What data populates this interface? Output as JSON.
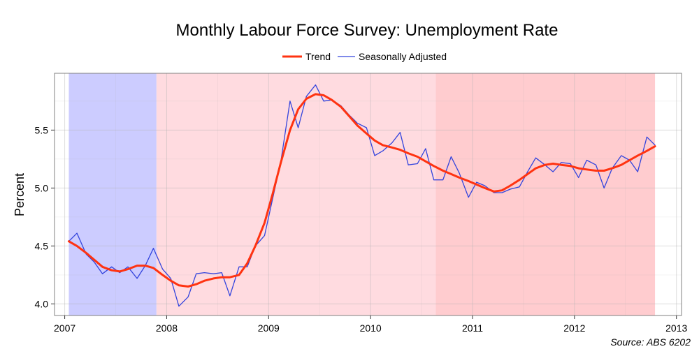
{
  "chart_data": {
    "type": "line",
    "title": "Monthly Labour Force Survey: Unemployment Rate",
    "ylabel": "Percent",
    "xlabel": "",
    "caption": "Source: ABS 6202",
    "xlim": [
      2006.9,
      2013.05
    ],
    "ylim": [
      3.9,
      5.99
    ],
    "x_ticks": [
      2007,
      2008,
      2009,
      2010,
      2011,
      2012,
      2013
    ],
    "y_ticks": [
      4.0,
      4.5,
      5.0,
      5.5
    ],
    "y_tick_labels": [
      "4.0",
      "4.5",
      "5.0",
      "5.5"
    ],
    "grid": true,
    "legend_position": "top",
    "shaded_periods": [
      {
        "start": 2007.04,
        "end": 2007.9,
        "color": "#ccccff"
      },
      {
        "start": 2007.9,
        "end": 2010.64,
        "color": "#ffdbe0"
      },
      {
        "start": 2010.64,
        "end": 2012.79,
        "color": "#ffcccf"
      }
    ],
    "series": [
      {
        "name": "Trend",
        "color": "#ff3311",
        "x": [
          2007.04,
          2007.12,
          2007.21,
          2007.29,
          2007.37,
          2007.46,
          2007.54,
          2007.62,
          2007.71,
          2007.79,
          2007.87,
          2007.96,
          2008.04,
          2008.12,
          2008.21,
          2008.29,
          2008.37,
          2008.46,
          2008.54,
          2008.62,
          2008.71,
          2008.79,
          2008.87,
          2008.96,
          2009.04,
          2009.12,
          2009.21,
          2009.29,
          2009.37,
          2009.46,
          2009.54,
          2009.62,
          2009.71,
          2009.79,
          2009.87,
          2009.96,
          2010.04,
          2010.12,
          2010.21,
          2010.29,
          2010.37,
          2010.46,
          2010.54,
          2010.62,
          2010.71,
          2010.79,
          2010.87,
          2010.96,
          2011.04,
          2011.12,
          2011.21,
          2011.29,
          2011.37,
          2011.46,
          2011.54,
          2011.62,
          2011.71,
          2011.79,
          2011.87,
          2011.96,
          2012.04,
          2012.12,
          2012.21,
          2012.29,
          2012.37,
          2012.46,
          2012.54,
          2012.62,
          2012.71,
          2012.79
        ],
        "values": [
          4.54,
          4.5,
          4.44,
          4.38,
          4.32,
          4.29,
          4.28,
          4.3,
          4.33,
          4.33,
          4.31,
          4.25,
          4.2,
          4.16,
          4.15,
          4.17,
          4.2,
          4.22,
          4.23,
          4.23,
          4.25,
          4.35,
          4.5,
          4.7,
          4.95,
          5.22,
          5.5,
          5.68,
          5.77,
          5.81,
          5.8,
          5.76,
          5.7,
          5.62,
          5.54,
          5.47,
          5.41,
          5.37,
          5.35,
          5.33,
          5.3,
          5.27,
          5.23,
          5.19,
          5.15,
          5.12,
          5.09,
          5.06,
          5.03,
          5.0,
          4.97,
          4.98,
          5.02,
          5.07,
          5.12,
          5.17,
          5.2,
          5.21,
          5.2,
          5.19,
          5.17,
          5.16,
          5.15,
          5.15,
          5.17,
          5.2,
          5.24,
          5.28,
          5.32,
          5.36
        ]
      },
      {
        "name": "Seasonally Adjusted",
        "color": "#3344dd",
        "x": [
          2007.04,
          2007.12,
          2007.21,
          2007.29,
          2007.37,
          2007.46,
          2007.54,
          2007.62,
          2007.71,
          2007.79,
          2007.87,
          2007.96,
          2008.04,
          2008.12,
          2008.21,
          2008.29,
          2008.37,
          2008.46,
          2008.54,
          2008.62,
          2008.71,
          2008.79,
          2008.87,
          2008.96,
          2009.04,
          2009.12,
          2009.21,
          2009.29,
          2009.37,
          2009.46,
          2009.54,
          2009.62,
          2009.71,
          2009.79,
          2009.87,
          2009.96,
          2010.04,
          2010.12,
          2010.21,
          2010.29,
          2010.37,
          2010.46,
          2010.54,
          2010.62,
          2010.71,
          2010.79,
          2010.87,
          2010.96,
          2011.04,
          2011.12,
          2011.21,
          2011.29,
          2011.37,
          2011.46,
          2011.54,
          2011.62,
          2011.71,
          2011.79,
          2011.87,
          2011.96,
          2012.04,
          2012.12,
          2012.21,
          2012.29,
          2012.37,
          2012.46,
          2012.54,
          2012.62,
          2012.71,
          2012.79
        ],
        "values": [
          4.54,
          4.61,
          4.43,
          4.36,
          4.26,
          4.32,
          4.27,
          4.32,
          4.22,
          4.33,
          4.48,
          4.3,
          4.22,
          3.98,
          4.06,
          4.26,
          4.27,
          4.26,
          4.27,
          4.07,
          4.32,
          4.32,
          4.5,
          4.59,
          4.91,
          5.23,
          5.75,
          5.52,
          5.79,
          5.89,
          5.75,
          5.76,
          5.71,
          5.63,
          5.56,
          5.52,
          5.28,
          5.32,
          5.39,
          5.48,
          5.2,
          5.21,
          5.34,
          5.07,
          5.07,
          5.27,
          5.13,
          4.92,
          5.05,
          5.02,
          4.96,
          4.96,
          4.99,
          5.01,
          5.14,
          5.26,
          5.2,
          5.14,
          5.22,
          5.21,
          5.09,
          5.24,
          5.2,
          5.0,
          5.17,
          5.28,
          5.24,
          5.14,
          5.44,
          5.37
        ]
      }
    ]
  }
}
